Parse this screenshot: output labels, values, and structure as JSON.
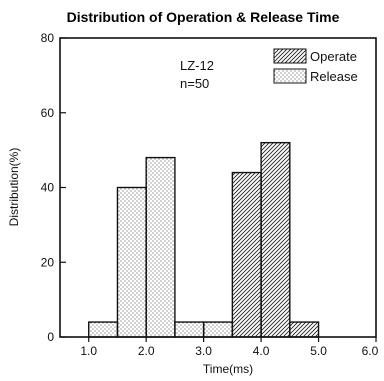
{
  "chart_data": {
    "type": "bar",
    "title": "Distribution of Operation & Release Time",
    "xlabel": "Time(ms)",
    "ylabel": "Distribution(%)",
    "xlim": [
      0.5,
      6.0
    ],
    "ylim": [
      0,
      80
    ],
    "x_ticks": [
      "1.0",
      "2.0",
      "3.0",
      "4.0",
      "5.0",
      "6.0"
    ],
    "y_ticks": [
      "0",
      "20",
      "40",
      "60",
      "80"
    ],
    "bin_width": 0.5,
    "annotation": [
      "LZ-12",
      "n=50"
    ],
    "legend": {
      "position": "top-right"
    },
    "series": [
      {
        "name": "Operate",
        "pattern": "hatched",
        "bins": [
          {
            "start": 3.5,
            "end": 4.0,
            "value": 44
          },
          {
            "start": 4.0,
            "end": 4.5,
            "value": 52
          },
          {
            "start": 4.5,
            "end": 5.0,
            "value": 4
          }
        ]
      },
      {
        "name": "Release",
        "pattern": "dotted",
        "bins": [
          {
            "start": 1.0,
            "end": 1.5,
            "value": 4
          },
          {
            "start": 1.5,
            "end": 2.0,
            "value": 40
          },
          {
            "start": 2.0,
            "end": 2.5,
            "value": 48
          },
          {
            "start": 2.5,
            "end": 3.0,
            "value": 4
          },
          {
            "start": 3.0,
            "end": 3.5,
            "value": 4
          }
        ]
      }
    ]
  }
}
